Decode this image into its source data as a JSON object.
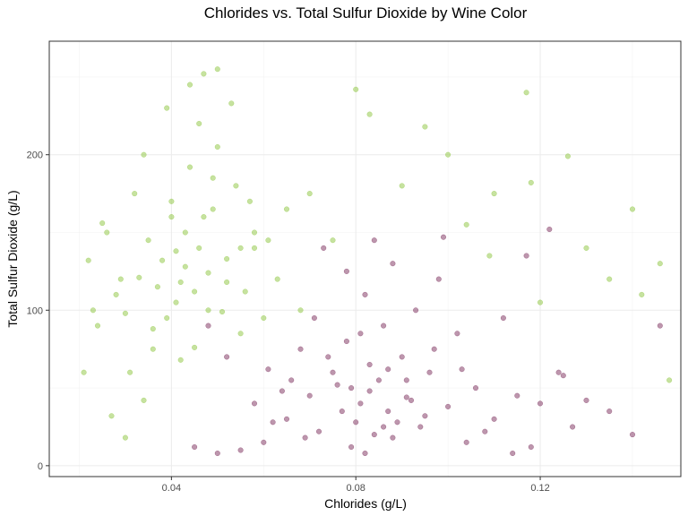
{
  "chart_data": {
    "type": "scatter",
    "title": "Chlorides vs. Total Sulfur Dioxide by Wine Color",
    "xlabel": "Chlorides (g/L)",
    "ylabel": "Total Sulfur Dioxide (g/L)",
    "xlim": [
      0.0135,
      0.1505
    ],
    "ylim": [
      -7,
      273
    ],
    "x_ticks": [
      0.04,
      0.08,
      0.12
    ],
    "x_tick_labels": [
      "0.04",
      "0.08",
      "0.12"
    ],
    "y_ticks": [
      0,
      100,
      200
    ],
    "y_tick_labels": [
      "0",
      "100",
      "200"
    ],
    "grid": true,
    "legend": "none",
    "series": [
      {
        "color": "#8DC63F",
        "opacity": 0.5,
        "points": [
          [
            0.022,
            132
          ],
          [
            0.025,
            156
          ],
          [
            0.028,
            110
          ],
          [
            0.03,
            98
          ],
          [
            0.033,
            121
          ],
          [
            0.035,
            145
          ],
          [
            0.036,
            88
          ],
          [
            0.038,
            132
          ],
          [
            0.04,
            170
          ],
          [
            0.041,
            105
          ],
          [
            0.042,
            118
          ],
          [
            0.043,
            150
          ],
          [
            0.044,
            192
          ],
          [
            0.045,
            76
          ],
          [
            0.046,
            140
          ],
          [
            0.047,
            160
          ],
          [
            0.048,
            124
          ],
          [
            0.05,
            205
          ],
          [
            0.051,
            99
          ],
          [
            0.052,
            133
          ],
          [
            0.054,
            180
          ],
          [
            0.056,
            112
          ],
          [
            0.058,
            150
          ],
          [
            0.06,
            95
          ],
          [
            0.034,
            200
          ],
          [
            0.039,
            230
          ],
          [
            0.044,
            245
          ],
          [
            0.047,
            252
          ],
          [
            0.05,
            255
          ],
          [
            0.053,
            233
          ],
          [
            0.031,
            60
          ],
          [
            0.034,
            42
          ],
          [
            0.027,
            32
          ],
          [
            0.03,
            18
          ],
          [
            0.065,
            165
          ],
          [
            0.07,
            175
          ],
          [
            0.075,
            145
          ],
          [
            0.09,
            180
          ],
          [
            0.1,
            200
          ],
          [
            0.11,
            175
          ],
          [
            0.118,
            182
          ],
          [
            0.12,
            105
          ],
          [
            0.126,
            199
          ],
          [
            0.13,
            140
          ],
          [
            0.14,
            165
          ],
          [
            0.146,
            130
          ],
          [
            0.148,
            55
          ],
          [
            0.058,
            140
          ],
          [
            0.063,
            120
          ],
          [
            0.068,
            100
          ],
          [
            0.055,
            85
          ],
          [
            0.042,
            68
          ],
          [
            0.036,
            75
          ],
          [
            0.029,
            120
          ],
          [
            0.024,
            90
          ],
          [
            0.026,
            150
          ],
          [
            0.032,
            175
          ],
          [
            0.049,
            185
          ],
          [
            0.057,
            170
          ],
          [
            0.061,
            145
          ],
          [
            0.08,
            242
          ],
          [
            0.117,
            240
          ],
          [
            0.083,
            226
          ],
          [
            0.095,
            218
          ],
          [
            0.104,
            155
          ],
          [
            0.109,
            135
          ],
          [
            0.135,
            120
          ],
          [
            0.142,
            110
          ],
          [
            0.021,
            60
          ],
          [
            0.023,
            100
          ],
          [
            0.037,
            115
          ],
          [
            0.041,
            138
          ],
          [
            0.043,
            128
          ],
          [
            0.045,
            112
          ],
          [
            0.039,
            95
          ],
          [
            0.048,
            100
          ],
          [
            0.052,
            118
          ],
          [
            0.055,
            140
          ],
          [
            0.046,
            220
          ],
          [
            0.049,
            165
          ],
          [
            0.04,
            160
          ]
        ]
      },
      {
        "color": "#7B2D5B",
        "opacity": 0.5,
        "points": [
          [
            0.065,
            30
          ],
          [
            0.07,
            45
          ],
          [
            0.072,
            22
          ],
          [
            0.075,
            60
          ],
          [
            0.077,
            35
          ],
          [
            0.078,
            80
          ],
          [
            0.079,
            50
          ],
          [
            0.08,
            28
          ],
          [
            0.081,
            40
          ],
          [
            0.082,
            110
          ],
          [
            0.083,
            65
          ],
          [
            0.084,
            20
          ],
          [
            0.085,
            55
          ],
          [
            0.086,
            90
          ],
          [
            0.087,
            35
          ],
          [
            0.088,
            18
          ],
          [
            0.09,
            70
          ],
          [
            0.092,
            42
          ],
          [
            0.094,
            25
          ],
          [
            0.096,
            60
          ],
          [
            0.098,
            120
          ],
          [
            0.1,
            38
          ],
          [
            0.102,
            85
          ],
          [
            0.104,
            15
          ],
          [
            0.106,
            50
          ],
          [
            0.11,
            30
          ],
          [
            0.112,
            95
          ],
          [
            0.115,
            45
          ],
          [
            0.118,
            12
          ],
          [
            0.122,
            152
          ],
          [
            0.124,
            60
          ],
          [
            0.127,
            25
          ],
          [
            0.13,
            42
          ],
          [
            0.135,
            35
          ],
          [
            0.14,
            20
          ],
          [
            0.146,
            90
          ],
          [
            0.06,
            15
          ],
          [
            0.062,
            28
          ],
          [
            0.055,
            10
          ],
          [
            0.05,
            8
          ],
          [
            0.045,
            12
          ],
          [
            0.068,
            75
          ],
          [
            0.073,
            140
          ],
          [
            0.078,
            125
          ],
          [
            0.084,
            145
          ],
          [
            0.088,
            130
          ],
          [
            0.093,
            100
          ],
          [
            0.097,
            75
          ],
          [
            0.079,
            12
          ],
          [
            0.082,
            8
          ],
          [
            0.086,
            25
          ],
          [
            0.091,
            55
          ],
          [
            0.095,
            32
          ],
          [
            0.103,
            62
          ],
          [
            0.108,
            22
          ],
          [
            0.114,
            8
          ],
          [
            0.12,
            40
          ],
          [
            0.125,
            58
          ],
          [
            0.117,
            135
          ],
          [
            0.099,
            147
          ],
          [
            0.071,
            95
          ],
          [
            0.066,
            55
          ],
          [
            0.069,
            18
          ],
          [
            0.074,
            70
          ],
          [
            0.076,
            52
          ],
          [
            0.081,
            85
          ],
          [
            0.083,
            48
          ],
          [
            0.087,
            62
          ],
          [
            0.089,
            28
          ],
          [
            0.091,
            44
          ],
          [
            0.048,
            90
          ],
          [
            0.052,
            70
          ],
          [
            0.058,
            40
          ],
          [
            0.061,
            62
          ],
          [
            0.064,
            48
          ]
        ]
      }
    ]
  }
}
